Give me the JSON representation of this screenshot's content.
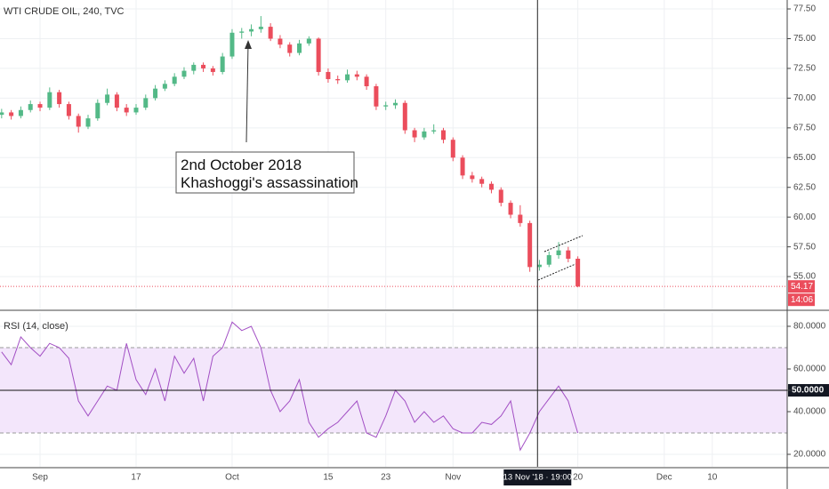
{
  "chart_data": {
    "type": "candlestick",
    "title": "WTI CRUDE OIL, 240, TVC",
    "x": [
      -4,
      -3,
      -2,
      -1,
      0,
      1,
      2,
      3,
      4,
      5,
      6,
      7,
      8,
      9,
      10,
      11,
      12,
      13,
      14,
      15,
      16,
      17,
      18,
      19,
      20,
      21,
      22,
      23,
      24,
      25,
      26,
      27,
      28,
      29,
      30,
      31,
      32,
      33,
      34,
      35,
      36,
      37,
      38,
      39,
      40,
      41,
      42,
      43,
      44,
      45,
      46,
      47,
      48,
      49,
      50,
      51,
      52,
      53,
      54,
      55,
      56
    ],
    "candles": [
      [
        68.6,
        69.1,
        68.3,
        68.8
      ],
      [
        68.8,
        69.0,
        68.2,
        68.5
      ],
      [
        68.5,
        69.3,
        68.3,
        69.0
      ],
      [
        69.0,
        69.8,
        68.8,
        69.5
      ],
      [
        69.5,
        69.7,
        68.9,
        69.2
      ],
      [
        69.2,
        70.9,
        69.0,
        70.5
      ],
      [
        70.5,
        70.7,
        69.2,
        69.5
      ],
      [
        69.5,
        69.7,
        68.2,
        68.5
      ],
      [
        68.5,
        68.7,
        67.1,
        67.6
      ],
      [
        67.6,
        68.6,
        67.4,
        68.3
      ],
      [
        68.3,
        69.9,
        68.1,
        69.6
      ],
      [
        69.6,
        70.8,
        69.4,
        70.3
      ],
      [
        70.3,
        70.5,
        68.9,
        69.2
      ],
      [
        69.2,
        69.5,
        68.5,
        68.8
      ],
      [
        68.8,
        69.5,
        68.6,
        69.2
      ],
      [
        69.2,
        70.3,
        69.0,
        70.0
      ],
      [
        70.0,
        71.1,
        69.8,
        70.8
      ],
      [
        70.8,
        71.5,
        70.6,
        71.2
      ],
      [
        71.2,
        72.1,
        71.0,
        71.8
      ],
      [
        71.8,
        72.6,
        71.6,
        72.3
      ],
      [
        72.3,
        73.0,
        72.0,
        72.8
      ],
      [
        72.8,
        73.0,
        72.2,
        72.5
      ],
      [
        72.5,
        72.7,
        71.9,
        72.2
      ],
      [
        72.2,
        73.8,
        72.0,
        73.5
      ],
      [
        73.5,
        75.8,
        73.3,
        75.5
      ],
      [
        75.5,
        75.9,
        75.0,
        75.6
      ],
      [
        75.6,
        76.2,
        75.2,
        75.8
      ],
      [
        75.8,
        76.9,
        75.5,
        76.0
      ],
      [
        76.0,
        76.3,
        74.8,
        75.0
      ],
      [
        75.0,
        75.3,
        74.2,
        74.5
      ],
      [
        74.5,
        74.7,
        73.5,
        73.8
      ],
      [
        73.8,
        74.9,
        73.6,
        74.6
      ],
      [
        74.6,
        75.2,
        74.4,
        75.0
      ],
      [
        75.0,
        75.1,
        71.9,
        72.2
      ],
      [
        72.2,
        72.5,
        71.3,
        71.6
      ],
      [
        71.6,
        71.9,
        71.2,
        71.5
      ],
      [
        71.5,
        72.4,
        71.3,
        72.0
      ],
      [
        72.0,
        72.3,
        71.5,
        71.8
      ],
      [
        71.8,
        72.0,
        70.7,
        71.0
      ],
      [
        71.0,
        71.2,
        69.0,
        69.3
      ],
      [
        69.3,
        69.7,
        69.0,
        69.4
      ],
      [
        69.4,
        69.9,
        69.1,
        69.6
      ],
      [
        69.6,
        69.8,
        67.0,
        67.3
      ],
      [
        67.3,
        67.5,
        66.3,
        66.7
      ],
      [
        66.7,
        67.5,
        66.5,
        67.2
      ],
      [
        67.2,
        67.8,
        67.0,
        67.3
      ],
      [
        67.3,
        67.5,
        66.2,
        66.5
      ],
      [
        66.5,
        66.7,
        64.7,
        65.0
      ],
      [
        65.0,
        65.2,
        63.2,
        63.5
      ],
      [
        63.5,
        63.8,
        62.9,
        63.2
      ],
      [
        63.2,
        63.4,
        62.5,
        62.8
      ],
      [
        62.8,
        63.0,
        62.0,
        62.3
      ],
      [
        62.3,
        62.5,
        60.9,
        61.2
      ],
      [
        61.2,
        61.4,
        59.9,
        60.2
      ],
      [
        60.2,
        61.0,
        59.2,
        59.5
      ],
      [
        59.5,
        59.7,
        55.4,
        55.8
      ],
      [
        55.8,
        56.4,
        55.5,
        56.0
      ],
      [
        56.0,
        57.1,
        55.8,
        56.8
      ],
      [
        56.8,
        57.9,
        56.5,
        57.2
      ],
      [
        57.2,
        57.5,
        56.2,
        56.5
      ],
      [
        56.5,
        56.7,
        54.1,
        54.17
      ]
    ],
    "colors": {
      "up": "#53b987",
      "down": "#eb4d5c"
    },
    "xlim": [
      -4.17,
      77.8
    ],
    "xticks": [
      {
        "value": 0,
        "label": "Sep"
      },
      {
        "value": 10,
        "label": "17"
      },
      {
        "value": 20,
        "label": "Oct"
      },
      {
        "value": 30,
        "label": "15"
      },
      {
        "value": 36,
        "label": "23"
      },
      {
        "value": 43,
        "label": "Nov"
      },
      {
        "value": 56,
        "label": "20"
      },
      {
        "value": 65,
        "label": "Dec"
      },
      {
        "value": 70,
        "label": "10"
      }
    ],
    "ylim": [
      52.24,
      78.25
    ],
    "yticks": [
      {
        "value": 55,
        "label": "55.00"
      },
      {
        "value": 57.5,
        "label": "57.50"
      },
      {
        "value": 60,
        "label": "60.00"
      },
      {
        "value": 62.5,
        "label": "62.50"
      },
      {
        "value": 65,
        "label": "65.00"
      },
      {
        "value": 67.5,
        "label": "67.50"
      },
      {
        "value": 70,
        "label": "70.00"
      },
      {
        "value": 72.5,
        "label": "72.50"
      },
      {
        "value": 75,
        "label": "75.00"
      },
      {
        "value": 77.5,
        "label": "77.50"
      }
    ],
    "grid": true,
    "last_price": 54.17,
    "countdown": "14:06",
    "crosshair": {
      "x": 51.8,
      "label": "13 Nov '18 · 19:00"
    },
    "annotation": [
      "2nd October 2018",
      "Khashoggi's assassination"
    ],
    "rsi": {
      "title": "RSI (14, close)",
      "color": "#a24fc4",
      "values": [
        68,
        62,
        75,
        70,
        66,
        72,
        70,
        65,
        45,
        38,
        45,
        52,
        50,
        72,
        55,
        48,
        60,
        45,
        66,
        58,
        65,
        45,
        66,
        70,
        82,
        78,
        80,
        70,
        50,
        40,
        45,
        55,
        35,
        28,
        32,
        35,
        40,
        45,
        30,
        28,
        38,
        50,
        45,
        35,
        40,
        35,
        38,
        32,
        30,
        30,
        35,
        34,
        38,
        45,
        22,
        30,
        40,
        46,
        52,
        45,
        30
      ],
      "ylim": [
        14.17,
        86.25
      ],
      "yticks": [
        {
          "value": 20,
          "label": "20.0000"
        },
        {
          "value": 40,
          "label": "40.0000"
        },
        {
          "value": 50,
          "label": "50.0000"
        },
        {
          "value": 60,
          "label": "60.0000"
        },
        {
          "value": 80,
          "label": "80.0000"
        }
      ],
      "bands": [
        70,
        30
      ]
    }
  }
}
